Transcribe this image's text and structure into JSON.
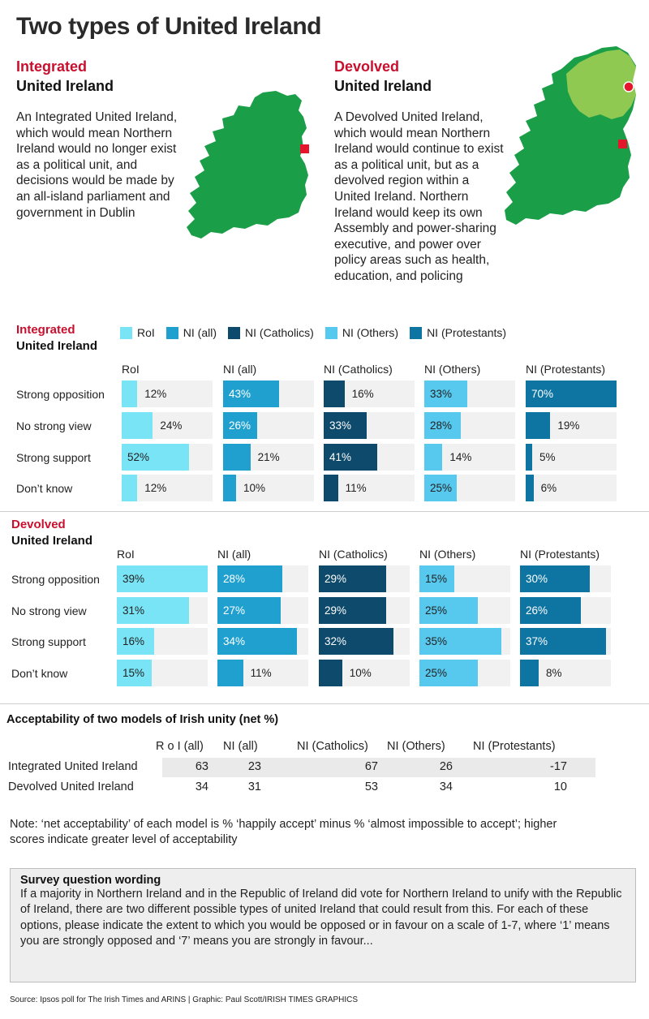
{
  "title": "Two types of United Ireland",
  "integrated": {
    "label_red": "Integrated",
    "label_black": "United Ireland",
    "description": "An Integrated United Ireland, which would mean Northern Ireland would no longer exist as a political unit, and decisions would be made by an all-island parliament and government in Dublin"
  },
  "devolved": {
    "label_red": "Devolved",
    "label_black": "United Ireland",
    "description": "A Devolved United Ireland, which would mean Northern Ireland would continue to exist as a political unit, but as a devolved region within a United Ireland. Northern Ireland would keep its own Assembly and power-sharing executive, and power over policy areas such as health, education, and policing"
  },
  "colors": {
    "accent_red": "#c8102e",
    "map_green": "#1a9e48",
    "map_light_green": "#8fc951",
    "marker_red": "#e3162d",
    "track": "#f1f1f1"
  },
  "legend": [
    {
      "label": "RoI",
      "color": "#7ae4f7"
    },
    {
      "label": "NI (all)",
      "color": "#1fa0cf"
    },
    {
      "label": "NI (Catholics)",
      "color": "#0d4a6c"
    },
    {
      "label": "NI (Others)",
      "color": "#57c9ef"
    },
    {
      "label": "NI (Protestants)",
      "color": "#0e75a3"
    }
  ],
  "chart_data": [
    {
      "type": "bar",
      "title": "Integrated United Ireland",
      "categories": [
        "Strong opposition",
        "No strong view",
        "Strong support",
        "Don’t know"
      ],
      "series": [
        {
          "name": "RoI",
          "values": [
            12,
            24,
            52,
            12
          ]
        },
        {
          "name": "NI (all)",
          "values": [
            43,
            26,
            21,
            10
          ]
        },
        {
          "name": "NI (Catholics)",
          "values": [
            16,
            33,
            41,
            11
          ]
        },
        {
          "name": "NI (Others)",
          "values": [
            33,
            28,
            14,
            25
          ]
        },
        {
          "name": "NI (Protestants)",
          "values": [
            70,
            19,
            5,
            6
          ]
        }
      ],
      "unit": "%",
      "xlim": [
        0,
        70
      ]
    },
    {
      "type": "bar",
      "title": "Devolved United Ireland",
      "categories": [
        "Strong opposition",
        "No strong view",
        "Strong support",
        "Don’t know"
      ],
      "series": [
        {
          "name": "RoI",
          "values": [
            39,
            31,
            16,
            15
          ]
        },
        {
          "name": "NI (all)",
          "values": [
            28,
            27,
            34,
            11
          ]
        },
        {
          "name": "NI (Catholics)",
          "values": [
            29,
            29,
            32,
            10
          ]
        },
        {
          "name": "NI (Others)",
          "values": [
            15,
            25,
            35,
            25
          ]
        },
        {
          "name": "NI (Protestants)",
          "values": [
            30,
            26,
            37,
            8
          ]
        }
      ],
      "unit": "%",
      "xlim": [
        0,
        39
      ]
    },
    {
      "type": "table",
      "title": "Acceptability of two models of Irish unity (net %)",
      "columns": [
        "R o I (all)",
        "NI (all)",
        "NI (Catholics)",
        "NI (Others)",
        "NI (Protestants)"
      ],
      "rows": [
        {
          "label": "Integrated United Ireland",
          "values": [
            "63",
            "23",
            "67",
            "26",
            "-17"
          ]
        },
        {
          "label": "Devolved United Ireland",
          "values": [
            "34",
            "31",
            "53",
            "34",
            "10"
          ]
        }
      ]
    }
  ],
  "note": "Note: ‘net acceptability’ of each model is % ‘happily accept’ minus % ‘almost impossible to accept’; higher scores indicate greater level of acceptability",
  "survey": {
    "title": "Survey question wording",
    "text": "If a majority in Northern Ireland and in the Republic of Ireland did vote for Northern Ireland to unify with the Republic of Ireland, there are two different possible types of united Ireland that could result from this. For each of these options, please indicate the extent to which you would be opposed or in favour on a scale of 1-7, where ‘1’ means you are strongly opposed and ‘7’ means you are strongly in favour..."
  },
  "source": "Source: Ipsos poll for The Irish Times and ARINS  |  Graphic: Paul Scott/IRISH TIMES GRAPHICS"
}
